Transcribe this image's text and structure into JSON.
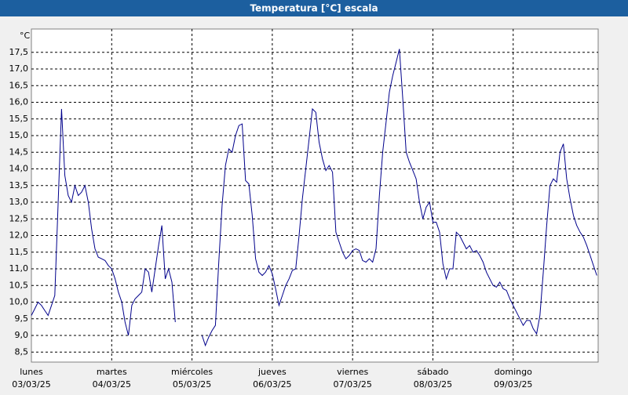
{
  "chart_data": {
    "type": "line",
    "title": "Temperatura [°C] escala",
    "y_unit": "°C",
    "x": [
      0,
      1,
      2,
      3,
      4,
      5,
      6,
      7,
      8,
      9,
      10,
      11,
      12,
      13,
      14,
      15,
      16,
      17,
      18,
      19,
      20,
      21,
      22,
      23,
      24,
      25,
      26,
      27,
      28,
      29,
      30,
      31,
      32,
      33,
      34,
      35,
      36,
      37,
      38,
      39,
      40,
      41,
      42,
      43,
      44,
      45,
      46,
      47,
      48,
      49,
      50,
      51,
      52,
      53,
      54,
      55,
      56,
      57,
      58,
      59,
      60,
      61,
      62,
      63,
      64,
      65,
      66,
      67,
      68,
      69,
      70,
      71,
      72,
      73,
      74,
      75,
      76,
      77,
      78,
      79,
      80,
      81,
      82,
      83,
      84,
      85,
      86,
      87,
      88,
      89,
      90,
      91,
      92,
      93,
      94,
      95,
      96,
      97,
      98,
      99,
      100,
      101,
      102,
      103,
      104,
      105,
      106,
      107,
      108,
      109,
      110,
      111,
      112,
      113,
      114,
      115,
      116,
      117,
      118,
      119,
      120,
      121,
      122,
      123,
      124,
      125,
      126,
      127,
      128,
      129,
      130,
      131,
      132,
      133,
      134,
      135,
      136,
      137,
      138,
      139,
      140,
      141,
      142,
      143,
      144,
      145,
      146,
      147,
      148,
      149,
      150,
      151,
      152,
      153,
      154,
      155,
      156,
      157,
      158,
      159,
      160,
      161,
      162,
      163,
      164,
      165,
      166,
      167,
      168,
      169
    ],
    "series": [
      {
        "name": "Temperatura",
        "color": "#00008b",
        "values": [
          9.6,
          9.8,
          10.0,
          9.9,
          9.75,
          9.6,
          9.9,
          10.2,
          13.0,
          15.8,
          13.8,
          13.2,
          13.0,
          13.5,
          13.2,
          13.3,
          13.5,
          13.0,
          12.2,
          11.6,
          11.35,
          11.3,
          11.25,
          11.1,
          11.0,
          10.7,
          10.3,
          10.0,
          9.4,
          9.0,
          9.9,
          10.1,
          10.2,
          10.3,
          11.0,
          10.9,
          10.3,
          11.0,
          11.7,
          12.3,
          10.7,
          11.0,
          10.6,
          9.4,
          null,
          null,
          null,
          null,
          null,
          null,
          null,
          9.0,
          8.7,
          8.95,
          9.15,
          9.3,
          11.2,
          12.9,
          14.1,
          14.6,
          14.5,
          15.0,
          15.3,
          15.35,
          13.65,
          13.55,
          12.6,
          11.3,
          10.9,
          10.8,
          10.9,
          11.1,
          10.85,
          10.4,
          9.9,
          10.2,
          10.5,
          10.7,
          10.95,
          11.0,
          12.0,
          13.1,
          14.0,
          14.9,
          15.8,
          15.7,
          14.8,
          14.3,
          13.95,
          14.1,
          13.9,
          12.1,
          11.8,
          11.5,
          11.3,
          11.4,
          11.55,
          11.6,
          11.55,
          11.25,
          11.2,
          11.3,
          11.2,
          11.6,
          13.2,
          14.5,
          15.4,
          16.3,
          16.8,
          17.2,
          17.6,
          16.1,
          14.5,
          14.2,
          13.95,
          13.7,
          13.0,
          12.5,
          12.85,
          13.0,
          12.4,
          12.4,
          12.1,
          11.15,
          10.7,
          11.0,
          11.0,
          12.1,
          12.0,
          11.8,
          11.6,
          11.7,
          11.5,
          11.55,
          11.4,
          11.2,
          10.9,
          10.7,
          10.5,
          10.45,
          10.6,
          10.4,
          10.35,
          10.1,
          9.9,
          9.7,
          9.5,
          9.3,
          9.45,
          9.45,
          9.2,
          9.05,
          9.6,
          10.9,
          12.3,
          13.5,
          13.7,
          13.6,
          14.5,
          14.75,
          13.7,
          13.1,
          12.6,
          12.3,
          12.1,
          11.95,
          11.7,
          11.4,
          11.1,
          10.8
        ]
      }
    ],
    "xlim": [
      0,
      169.4
    ],
    "xticks": [
      0,
      24,
      48,
      72,
      96,
      120,
      144
    ],
    "x_day_labels": [
      "lunes",
      "martes",
      "miércoles",
      "jueves",
      "viernes",
      "sábado",
      "domingo"
    ],
    "x_date_labels": [
      "03/03/25",
      "04/03/25",
      "05/03/25",
      "06/03/25",
      "07/03/25",
      "08/03/25",
      "09/03/25"
    ],
    "ylim": [
      8.2,
      18.2
    ],
    "yticks": [
      {
        "value": 8.5,
        "label": "8,5"
      },
      {
        "value": 9,
        "label": "9,0"
      },
      {
        "value": 9.5,
        "label": "9,5"
      },
      {
        "value": 10,
        "label": "10,0"
      },
      {
        "value": 10.5,
        "label": "10,5"
      },
      {
        "value": 11,
        "label": "11,0"
      },
      {
        "value": 11.5,
        "label": "11,5"
      },
      {
        "value": 12,
        "label": "12,0"
      },
      {
        "value": 12.5,
        "label": "12,5"
      },
      {
        "value": 13,
        "label": "13,0"
      },
      {
        "value": 13.5,
        "label": "13,5"
      },
      {
        "value": 14,
        "label": "14,0"
      },
      {
        "value": 14.5,
        "label": "14,5"
      },
      {
        "value": 15,
        "label": "15,0"
      },
      {
        "value": 15.5,
        "label": "15,5"
      },
      {
        "value": 16,
        "label": "16,0"
      },
      {
        "value": 16.5,
        "label": "16,5"
      },
      {
        "value": 17,
        "label": "17,0"
      },
      {
        "value": 17.5,
        "label": "17,5"
      }
    ],
    "grid": true
  }
}
